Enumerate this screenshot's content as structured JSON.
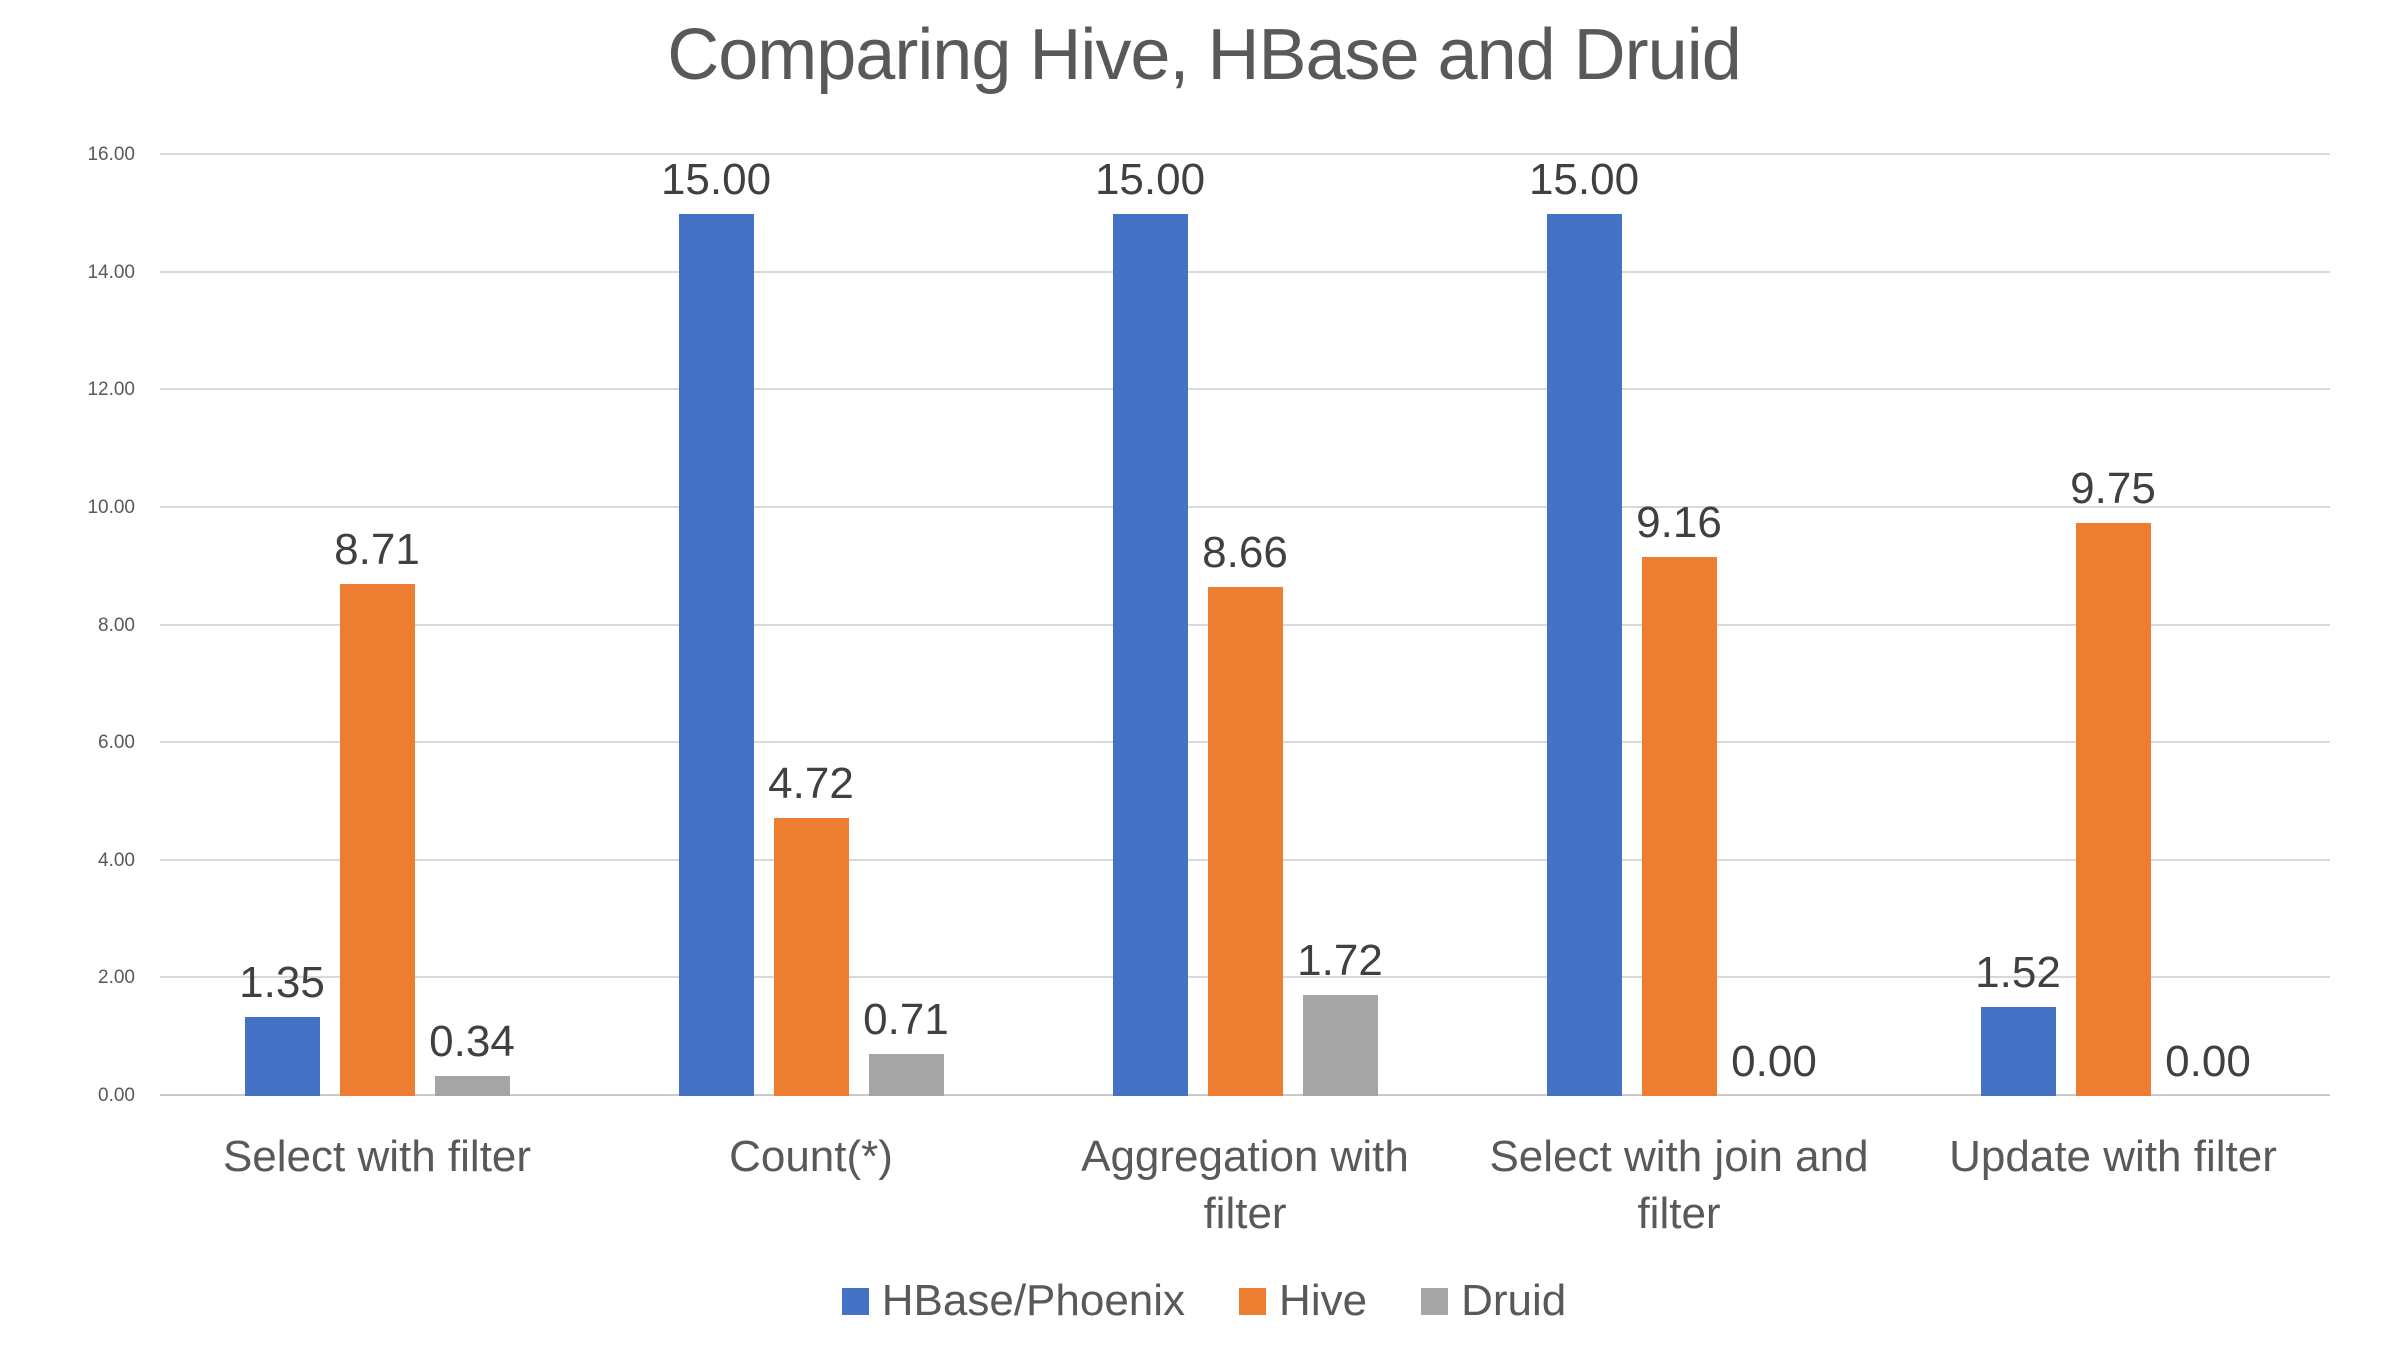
{
  "title": "Comparing Hive, HBase and Druid",
  "chart_data": {
    "type": "bar",
    "title": "Comparing Hive, HBase and Druid",
    "categories": [
      "Select with filter",
      "Count(*)",
      "Aggregation with filter",
      "Select with join and filter",
      "Update with filter"
    ],
    "series": [
      {
        "name": "HBase/Phoenix",
        "color": "#4472C4",
        "values": [
          1.35,
          15.0,
          15.0,
          15.0,
          1.52
        ]
      },
      {
        "name": "Hive",
        "color": "#ED7D31",
        "values": [
          8.71,
          4.72,
          8.66,
          9.16,
          9.75
        ]
      },
      {
        "name": "Druid",
        "color": "#A5A5A5",
        "values": [
          0.34,
          0.71,
          1.72,
          0.0,
          0.0
        ]
      }
    ],
    "ylim": [
      0,
      16
    ],
    "ytick_step": 2,
    "ytick_labels": [
      "0.00",
      "2.00",
      "4.00",
      "6.00",
      "8.00",
      "10.00",
      "12.00",
      "14.00",
      "16.00"
    ],
    "value_label_decimals": 2,
    "grid": true,
    "data_labels": true,
    "legend_position": "bottom",
    "xlabel": "",
    "ylabel": ""
  },
  "colors": {
    "title_text": "#595959",
    "axis_text": "#595959",
    "category_text": "#595959",
    "data_label_text": "#404040",
    "legend_text": "#595959",
    "gridline": "#D9D9D9",
    "background": "#FFFFFF"
  }
}
